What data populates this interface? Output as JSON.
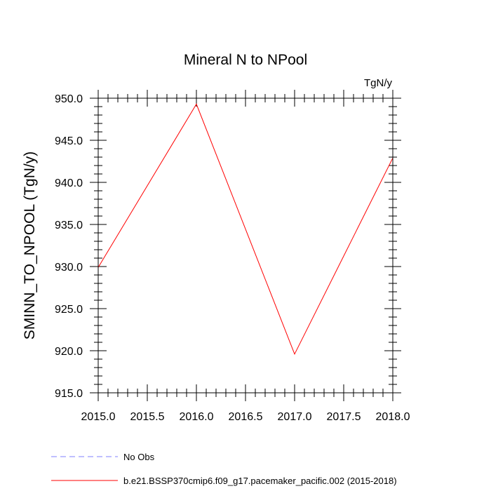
{
  "chart_data": {
    "type": "line",
    "title": "Mineral N to NPool",
    "units_label": "TgN/y",
    "xlabel": "",
    "ylabel": "SMINN_TO_NPOOL  (TgN/y)",
    "xlim": [
      2015.0,
      2018.0
    ],
    "ylim": [
      915.0,
      950.0
    ],
    "x_ticks": [
      2015.0,
      2015.5,
      2016.0,
      2016.5,
      2017.0,
      2017.5,
      2018.0
    ],
    "x_tick_labels": [
      "2015.0",
      "2015.5",
      "2016.0",
      "2016.5",
      "2017.0",
      "2017.5",
      "2018.0"
    ],
    "y_ticks": [
      915.0,
      920.0,
      925.0,
      930.0,
      935.0,
      940.0,
      945.0,
      950.0
    ],
    "y_tick_labels": [
      "915.0",
      "920.0",
      "925.0",
      "930.0",
      "935.0",
      "940.0",
      "945.0",
      "950.0"
    ],
    "grid": false,
    "legend_position": "bottom",
    "series": [
      {
        "name": "No Obs",
        "color": "#8080ff",
        "dashed": true,
        "x": [],
        "y": []
      },
      {
        "name": "b.e21.BSSP370cmip6.f09_g17.pacemaker_pacific.002 (2015-2018)",
        "color": "#ff0000",
        "dashed": false,
        "x": [
          2015.0,
          2016.0,
          2017.0,
          2018.0
        ],
        "y": [
          929.9,
          949.3,
          919.6,
          942.9
        ]
      }
    ]
  }
}
